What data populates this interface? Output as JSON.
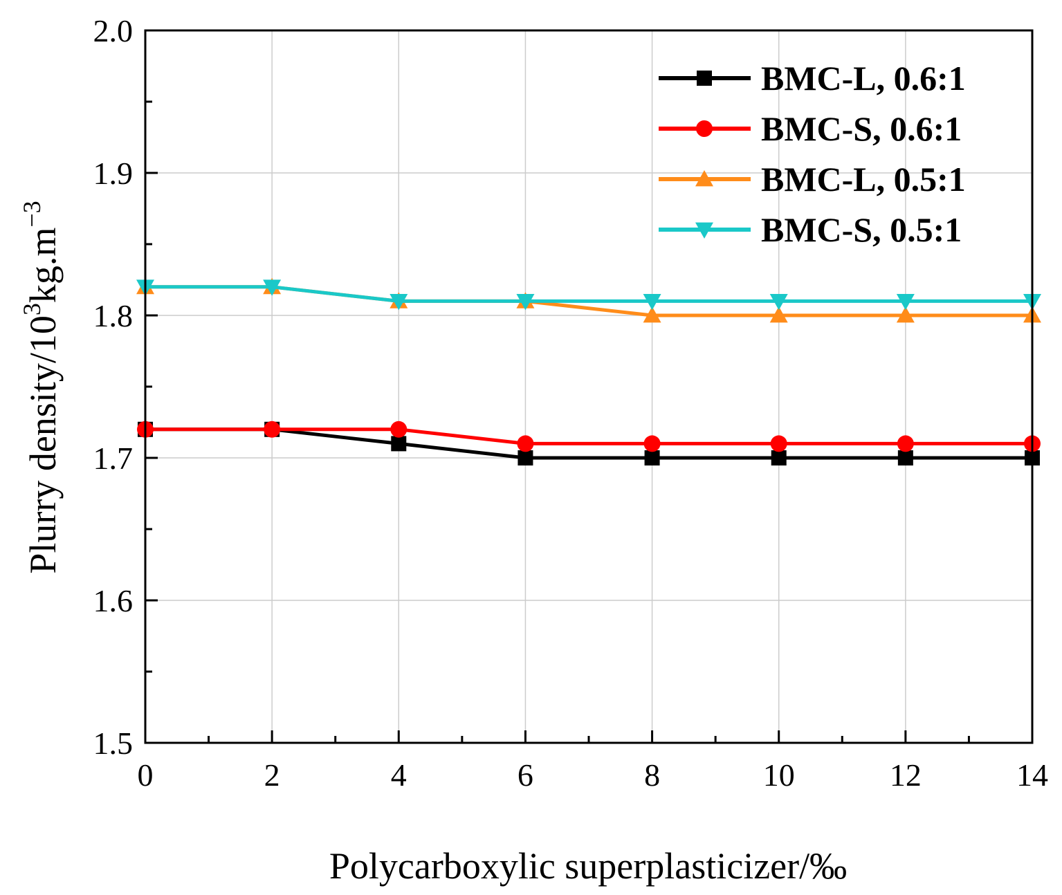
{
  "chart_data": {
    "type": "line",
    "title": "",
    "xlabel": "Polycarboxylic superplasticizer/‰",
    "ylabel_parts": {
      "main": "Plurry density/10",
      "sup1": "3",
      "mid": "kg.m",
      "sup2": "−3"
    },
    "xlim": [
      0,
      14
    ],
    "ylim": [
      1.5,
      2.0
    ],
    "x_ticks": [
      "0",
      "2",
      "4",
      "6",
      "8",
      "10",
      "12",
      "14"
    ],
    "y_ticks": [
      "1.5",
      "1.6",
      "1.7",
      "1.8",
      "1.9",
      "2.0"
    ],
    "grid": true,
    "legend_position": "top-right",
    "x": [
      0,
      2,
      4,
      6,
      8,
      10,
      12,
      14
    ],
    "series": [
      {
        "name": "BMC-L, 0.6:1",
        "color": "#000000",
        "marker": "square",
        "values": [
          1.72,
          1.72,
          1.71,
          1.7,
          1.7,
          1.7,
          1.7,
          1.7
        ]
      },
      {
        "name": "BMC-S, 0.6:1",
        "color": "#ff0000",
        "marker": "circle",
        "values": [
          1.72,
          1.72,
          1.72,
          1.71,
          1.71,
          1.71,
          1.71,
          1.71
        ]
      },
      {
        "name": "BMC-L, 0.5:1",
        "color": "#ff8c1a",
        "marker": "triangle-up",
        "values": [
          1.82,
          1.82,
          1.81,
          1.81,
          1.8,
          1.8,
          1.8,
          1.8
        ]
      },
      {
        "name": "BMC-S, 0.5:1",
        "color": "#1ac8c8",
        "marker": "triangle-down",
        "values": [
          1.82,
          1.82,
          1.81,
          1.81,
          1.81,
          1.81,
          1.81,
          1.81
        ]
      }
    ]
  }
}
